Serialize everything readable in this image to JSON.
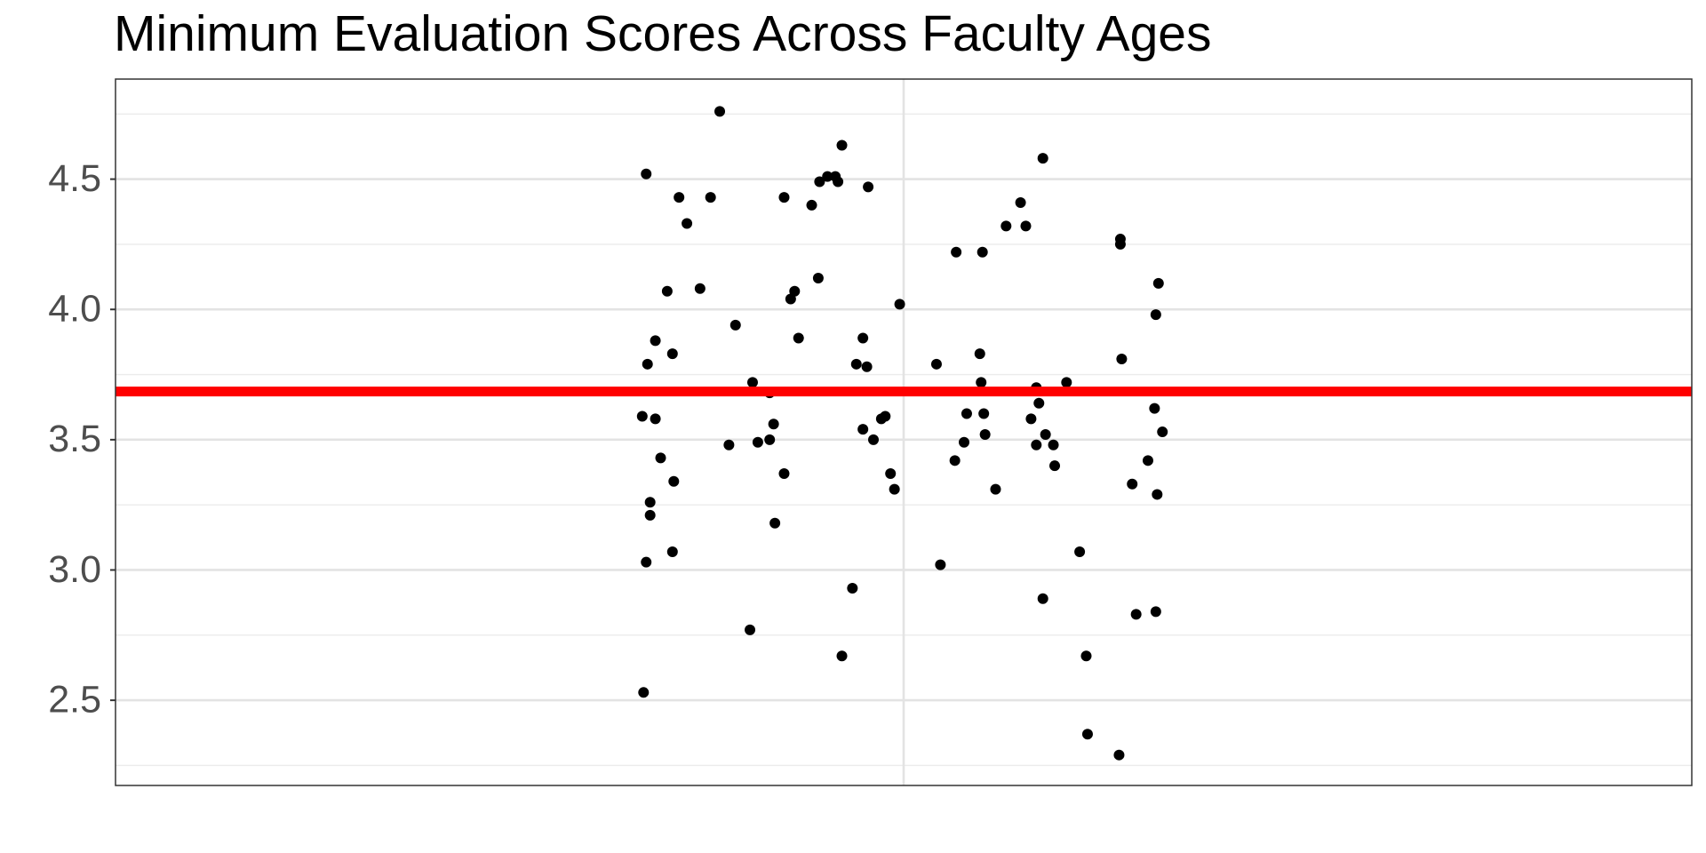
{
  "chart_data": {
    "type": "scatter",
    "title": "Minimum Evaluation Scores Across Faculty Ages",
    "color": "#000000",
    "x": [
      0.804,
      0.86,
      0.829,
      0.853,
      0.835,
      0.82,
      0.845,
      0.811,
      0.805,
      0.824,
      0.872,
      0.801,
      0.811,
      0.815,
      0.825,
      0.807,
      0.807,
      0.804,
      0.824,
      0.802,
      0.867,
      0.885,
      0.898,
      0.889,
      0.898,
      0.901,
      0.909,
      0.902,
      0.883,
      0.909,
      0.914,
      0.917,
      0.92,
      0.93,
      0.936,
      0.942,
      0.948,
      0.95,
      0.953,
      0.973,
      0.935,
      0.969,
      0.964,
      0.972,
      0.969,
      0.977,
      0.983,
      0.986,
      0.99,
      0.993,
      0.997,
      0.961,
      0.953,
      1.025,
      1.04,
      1.06,
      1.058,
      1.059,
      1.048,
      1.061,
      1.062,
      1.046,
      1.039,
      1.07,
      1.028,
      1.078,
      1.089,
      1.093,
      1.106,
      1.101,
      1.103,
      1.097,
      1.108,
      1.101,
      1.114,
      1.115,
      1.124,
      1.106,
      1.134,
      1.139,
      1.14,
      1.164,
      1.165,
      1.165,
      1.166,
      1.194,
      1.192,
      1.191,
      1.197,
      1.186,
      1.174,
      1.193,
      1.177,
      1.192
    ],
    "values": [
      4.52,
      4.76,
      4.43,
      4.43,
      4.33,
      4.07,
      4.08,
      3.88,
      3.79,
      3.83,
      3.94,
      3.59,
      3.58,
      3.43,
      3.34,
      3.26,
      3.21,
      3.03,
      3.07,
      2.53,
      3.48,
      3.72,
      3.68,
      3.49,
      3.5,
      3.56,
      3.37,
      3.18,
      2.77,
      4.43,
      4.04,
      4.07,
      3.89,
      4.4,
      4.49,
      4.51,
      4.51,
      4.49,
      4.63,
      4.47,
      4.12,
      3.89,
      3.79,
      3.78,
      3.54,
      3.5,
      3.58,
      3.59,
      3.37,
      3.31,
      4.02,
      2.93,
      2.67,
      3.79,
      4.22,
      4.22,
      3.83,
      3.72,
      3.6,
      3.6,
      3.52,
      3.49,
      3.42,
      3.31,
      3.02,
      4.32,
      4.41,
      4.32,
      4.58,
      3.7,
      3.64,
      3.58,
      3.52,
      3.48,
      3.48,
      3.4,
      3.72,
      2.89,
      3.07,
      2.67,
      2.37,
      2.29,
      4.27,
      4.25,
      3.81,
      4.1,
      3.98,
      3.62,
      3.53,
      3.42,
      3.33,
      3.29,
      2.83,
      2.84
    ],
    "xlim": [
      0.4,
      1.6
    ],
    "xticks": [
      1
    ],
    "ylim": [
      2.173,
      4.884
    ],
    "yticks": [
      2.5,
      {
        "value": 3,
        "label": "3.0"
      },
      3.5,
      {
        "value": 4,
        "label": "4.0"
      },
      4.5
    ],
    "y_minor_ticks": [
      2.25,
      2.75,
      3.25,
      3.75,
      4.25,
      4.75
    ],
    "grid": true,
    "hline": {
      "value": 3.685,
      "color": "#ff0000"
    }
  }
}
